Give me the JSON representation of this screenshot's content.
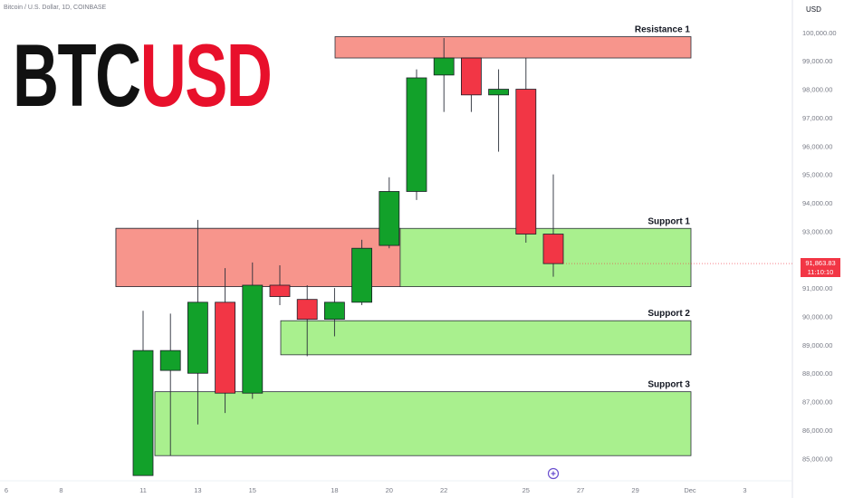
{
  "header": {
    "symbol_title": "Bitcoin / U.S. Dollar, 1D, COINBASE",
    "currency": "USD"
  },
  "logo": {
    "part1": "BTC",
    "part2": "USD",
    "color1": "#111111",
    "color2": "#e8102b"
  },
  "price_label": {
    "price": "91,863.83",
    "countdown": "11:10:10"
  },
  "zone_labels": {
    "resistance1": "Resistance 1",
    "support1": "Support 1",
    "support2": "Support 2",
    "support3": "Support 3"
  },
  "colors": {
    "up": "#12a12a",
    "down": "#f23645",
    "resistance_fill": "#f7958c",
    "support_fill": "#a9f08e"
  },
  "chart_data": {
    "type": "candlestick",
    "ylim": [
      84400,
      100500
    ],
    "y_ticks": [
      85000,
      86000,
      87000,
      88000,
      89000,
      90000,
      91000,
      92000,
      93000,
      94000,
      95000,
      96000,
      97000,
      98000,
      99000,
      100000
    ],
    "y_tick_labels": [
      "85,000.00",
      "86,000.00",
      "87,000.00",
      "88,000.00",
      "89,000.00",
      "90,000.00",
      "91,000.00",
      "92,000.00",
      "93,000.00",
      "94,000.00",
      "95,000.00",
      "96,000.00",
      "97,000.00",
      "98,000.00",
      "99,000.00",
      "100,000.00"
    ],
    "x_tick_labels": [
      "6",
      "8",
      "11",
      "13",
      "15",
      "18",
      "20",
      "22",
      "25",
      "27",
      "29",
      "Dec",
      "3"
    ],
    "x_tick_slots": [
      -5,
      -3,
      0,
      2,
      4,
      7,
      9,
      11,
      14,
      16,
      18,
      20,
      22
    ],
    "candles": [
      {
        "slot": 0,
        "open": 84400,
        "high": 90200,
        "low": 84400,
        "close": 88800
      },
      {
        "slot": 1,
        "open": 88100,
        "high": 90100,
        "low": 85100,
        "close": 88800
      },
      {
        "slot": 2,
        "open": 88000,
        "high": 93400,
        "low": 86200,
        "close": 90500
      },
      {
        "slot": 3,
        "open": 90500,
        "high": 91700,
        "low": 86600,
        "close": 87300
      },
      {
        "slot": 4,
        "open": 87300,
        "high": 91900,
        "low": 87100,
        "close": 91100
      },
      {
        "slot": 5,
        "open": 91100,
        "high": 91800,
        "low": 90400,
        "close": 90700
      },
      {
        "slot": 6,
        "open": 90600,
        "high": 91100,
        "low": 88600,
        "close": 89900
      },
      {
        "slot": 7,
        "open": 89900,
        "high": 91000,
        "low": 89300,
        "close": 90500
      },
      {
        "slot": 8,
        "open": 90500,
        "high": 92700,
        "low": 90400,
        "close": 92400
      },
      {
        "slot": 9,
        "open": 92500,
        "high": 94900,
        "low": 92400,
        "close": 94400
      },
      {
        "slot": 10,
        "open": 94400,
        "high": 98700,
        "low": 94100,
        "close": 98400
      },
      {
        "slot": 11,
        "open": 98500,
        "high": 99800,
        "low": 97200,
        "close": 99100
      },
      {
        "slot": 12,
        "open": 99100,
        "high": 99100,
        "low": 97200,
        "close": 97800
      },
      {
        "slot": 13,
        "open": 97800,
        "high": 98700,
        "low": 95800,
        "close": 98000
      },
      {
        "slot": 14,
        "open": 98000,
        "high": 99100,
        "low": 92600,
        "close": 92900
      },
      {
        "slot": 15,
        "open": 92900,
        "high": 95000,
        "low": 91400,
        "close": 91860
      }
    ],
    "zones": [
      {
        "label": "Resistance 1",
        "kind": "resistance",
        "from_slot": 7,
        "low": 99100,
        "high": 99850
      },
      {
        "label": "Support 1",
        "kind": "support",
        "from_slot": -1,
        "low": 91050,
        "high": 93100,
        "overlap_until_slot": 9
      },
      {
        "label": "Support 2",
        "kind": "support",
        "from_slot": 5,
        "low": 88650,
        "high": 89850
      },
      {
        "label": "Support 3",
        "kind": "support",
        "from_slot": 0,
        "low": 85100,
        "high": 87350
      }
    ],
    "marker": {
      "slot": 15,
      "value": 84700,
      "icon": "plus-circle-icon"
    },
    "last_price": 91863.83
  }
}
